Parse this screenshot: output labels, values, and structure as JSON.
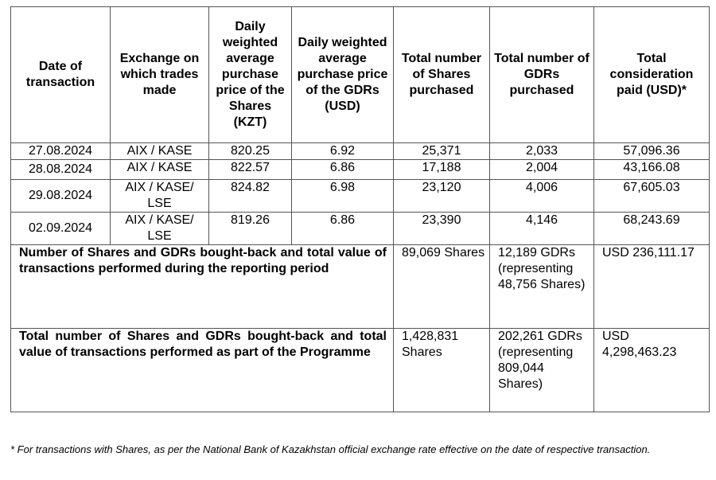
{
  "table": {
    "headers": [
      "Date of transaction",
      "Exchange on which trades made",
      "Daily weighted average purchase price of the Shares (KZT)",
      "Daily weighted average purchase price of the GDRs (USD)",
      "Total number of Shares purchased",
      "Total number of GDRs purchased",
      "Total consideration paid (USD)*"
    ],
    "rows": [
      {
        "date": "27.08.2024",
        "exchange": "AIX / KASE",
        "price_shares": "820.25",
        "price_gdrs": "6.92",
        "shares": "25,371",
        "gdrs": "2,033",
        "total": "57,096.36"
      },
      {
        "date": "28.08.2024",
        "exchange": "AIX / KASE",
        "price_shares": "822.57",
        "price_gdrs": "6.86",
        "shares": "17,188",
        "gdrs": "2,004",
        "total": "43,166.08"
      },
      {
        "date": "29.08.2024",
        "exchange": "AIX / KASE/ LSE",
        "price_shares": "824.82",
        "price_gdrs": "6.98",
        "shares": "23,120",
        "gdrs": "4,006",
        "total": "67,605.03"
      },
      {
        "date": "02.09.2024",
        "exchange": "AIX / KASE/ LSE",
        "price_shares": "819.26",
        "price_gdrs": "6.86",
        "shares": "23,390",
        "gdrs": "4,146",
        "total": "68,243.69"
      }
    ],
    "summary": [
      {
        "label": "Number of Shares and GDRs bought-back and total value of transactions performed during the reporting period",
        "shares": "89,069 Shares",
        "gdrs": "12,189 GDRs (representing 48,756 Shares)",
        "total": "USD 236,111.17"
      },
      {
        "label": "Total number of Shares and GDRs bought-back and total value of transactions performed as part of the Programme",
        "shares": "1,428,831 Shares",
        "gdrs": "202,261 GDRs (representing 809,044 Shares)",
        "total": "USD 4,298,463.23"
      }
    ]
  },
  "footnote": "* For transactions with Shares, as per the National Bank of Kazakhstan official exchange rate effective on the date of respective transaction."
}
